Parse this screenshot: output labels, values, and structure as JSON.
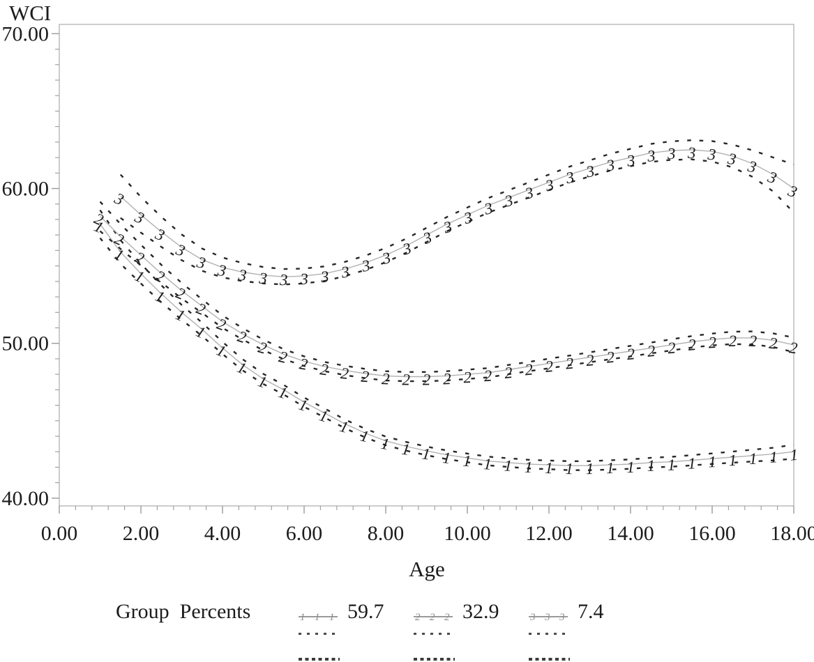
{
  "figure": {
    "background": "#ffffff",
    "frame_color": "#ababab",
    "tick_color": "#9a9a9a",
    "text_color": "#1c1c1c"
  },
  "chart_data": {
    "type": "line",
    "title": "",
    "ylabel": "WCI",
    "xlabel": "Age",
    "xlim": [
      0,
      18
    ],
    "ylim": [
      39.5,
      70.6
    ],
    "grid": false,
    "x_minor_step": 0.4,
    "y_minor_step": 1,
    "x_major_ticks": [
      {
        "value": 0,
        "label": "0.00"
      },
      {
        "value": 2,
        "label": "2.00"
      },
      {
        "value": 4,
        "label": "4.00"
      },
      {
        "value": 6,
        "label": "6.00"
      },
      {
        "value": 8,
        "label": "8.00"
      },
      {
        "value": 10,
        "label": "10.00"
      },
      {
        "value": 12,
        "label": "12.00"
      },
      {
        "value": 14,
        "label": "14.00"
      },
      {
        "value": 16,
        "label": "16.00"
      },
      {
        "value": 18,
        "label": "18.00"
      }
    ],
    "y_major_ticks": [
      {
        "value": 70,
        "label": "70.00"
      },
      {
        "value": 60,
        "label": "60.00"
      },
      {
        "value": 50,
        "label": "50.00"
      },
      {
        "value": 40,
        "label": "40.00"
      }
    ],
    "legend": {
      "title": "Group  Percents",
      "position": "bottom",
      "entries": [
        {
          "marker": "1",
          "percent": "59.7"
        },
        {
          "marker": "2",
          "percent": "32.9"
        },
        {
          "marker": "3",
          "percent": "7.4"
        }
      ]
    },
    "styles": {
      "line_color": "#b2b2b2",
      "marker_color": "#8f8f8f",
      "ci_color": "#272727"
    },
    "series": [
      {
        "name": "Group 1 (59.7%)",
        "marker_symbol": "1",
        "x": [
          1,
          1.5,
          2,
          2.5,
          3,
          3.5,
          4,
          4.5,
          5,
          5.5,
          6,
          6.5,
          7,
          7.5,
          8,
          8.5,
          9,
          9.5,
          10,
          10.5,
          11,
          11.5,
          12,
          12.5,
          13,
          13.5,
          14,
          14.5,
          15,
          15.5,
          16,
          16.5,
          17,
          17.5,
          18
        ],
        "y": [
          57.7,
          55.9,
          54.5,
          53.2,
          52.0,
          50.9,
          49.7,
          48.6,
          47.7,
          47.0,
          46.2,
          45.5,
          44.8,
          44.2,
          43.7,
          43.35,
          43.05,
          42.8,
          42.6,
          42.4,
          42.3,
          42.2,
          42.15,
          42.1,
          42.1,
          42.15,
          42.2,
          42.3,
          42.35,
          42.45,
          42.55,
          42.65,
          42.75,
          42.85,
          43.0
        ],
        "ci_halfwidth": [
          0.9,
          0.76,
          0.64,
          0.55,
          0.48,
          0.43,
          0.39,
          0.36,
          0.33,
          0.31,
          0.3,
          0.29,
          0.28,
          0.28,
          0.28,
          0.28,
          0.28,
          0.28,
          0.28,
          0.28,
          0.28,
          0.28,
          0.28,
          0.29,
          0.29,
          0.3,
          0.3,
          0.31,
          0.32,
          0.33,
          0.34,
          0.36,
          0.38,
          0.41,
          0.45
        ]
      },
      {
        "name": "Group 2 (32.9%)",
        "marker_symbol": "2",
        "x": [
          1,
          1.5,
          2,
          2.5,
          3,
          3.5,
          4,
          4.5,
          5,
          5.5,
          6,
          6.5,
          7,
          7.5,
          8,
          8.5,
          9,
          9.5,
          10,
          10.5,
          11,
          11.5,
          12,
          12.5,
          13,
          13.5,
          14,
          14.5,
          15,
          15.5,
          16,
          16.5,
          17,
          17.5,
          18
        ],
        "y": [
          58.2,
          56.9,
          55.7,
          54.5,
          53.4,
          52.4,
          51.4,
          50.6,
          49.9,
          49.3,
          48.85,
          48.5,
          48.25,
          48.05,
          47.9,
          47.85,
          47.85,
          47.9,
          48.0,
          48.1,
          48.3,
          48.5,
          48.7,
          48.9,
          49.1,
          49.3,
          49.5,
          49.7,
          49.9,
          50.1,
          50.25,
          50.35,
          50.35,
          50.2,
          49.9
        ],
        "ci_halfwidth": [
          0.95,
          0.8,
          0.67,
          0.57,
          0.5,
          0.44,
          0.4,
          0.37,
          0.34,
          0.32,
          0.31,
          0.3,
          0.3,
          0.3,
          0.3,
          0.3,
          0.3,
          0.3,
          0.3,
          0.3,
          0.3,
          0.3,
          0.31,
          0.31,
          0.32,
          0.33,
          0.34,
          0.35,
          0.36,
          0.37,
          0.38,
          0.4,
          0.42,
          0.44,
          0.47
        ]
      },
      {
        "name": "Group 3 (7.4%)",
        "marker_symbol": "3",
        "x": [
          1.5,
          2,
          2.5,
          3,
          3.5,
          4,
          4.5,
          5,
          5.5,
          6,
          6.5,
          7,
          7.5,
          8,
          8.5,
          9,
          9.5,
          10,
          10.5,
          11,
          11.5,
          12,
          12.5,
          13,
          13.5,
          14,
          14.5,
          15,
          15.5,
          16,
          16.5,
          17,
          17.5,
          18
        ],
        "y": [
          59.5,
          58.3,
          57.2,
          56.2,
          55.4,
          54.9,
          54.6,
          54.4,
          54.3,
          54.35,
          54.5,
          54.8,
          55.2,
          55.7,
          56.3,
          57.0,
          57.7,
          58.3,
          58.9,
          59.4,
          59.9,
          60.4,
          60.9,
          61.3,
          61.7,
          62.0,
          62.3,
          62.45,
          62.5,
          62.4,
          62.1,
          61.6,
          60.9,
          60.0
        ],
        "ci_halfwidth": [
          1.4,
          1.15,
          0.97,
          0.83,
          0.72,
          0.64,
          0.58,
          0.53,
          0.5,
          0.48,
          0.47,
          0.46,
          0.46,
          0.46,
          0.46,
          0.46,
          0.46,
          0.47,
          0.47,
          0.48,
          0.49,
          0.5,
          0.51,
          0.52,
          0.54,
          0.56,
          0.58,
          0.6,
          0.62,
          0.66,
          0.73,
          0.86,
          1.1,
          1.55
        ]
      }
    ]
  }
}
